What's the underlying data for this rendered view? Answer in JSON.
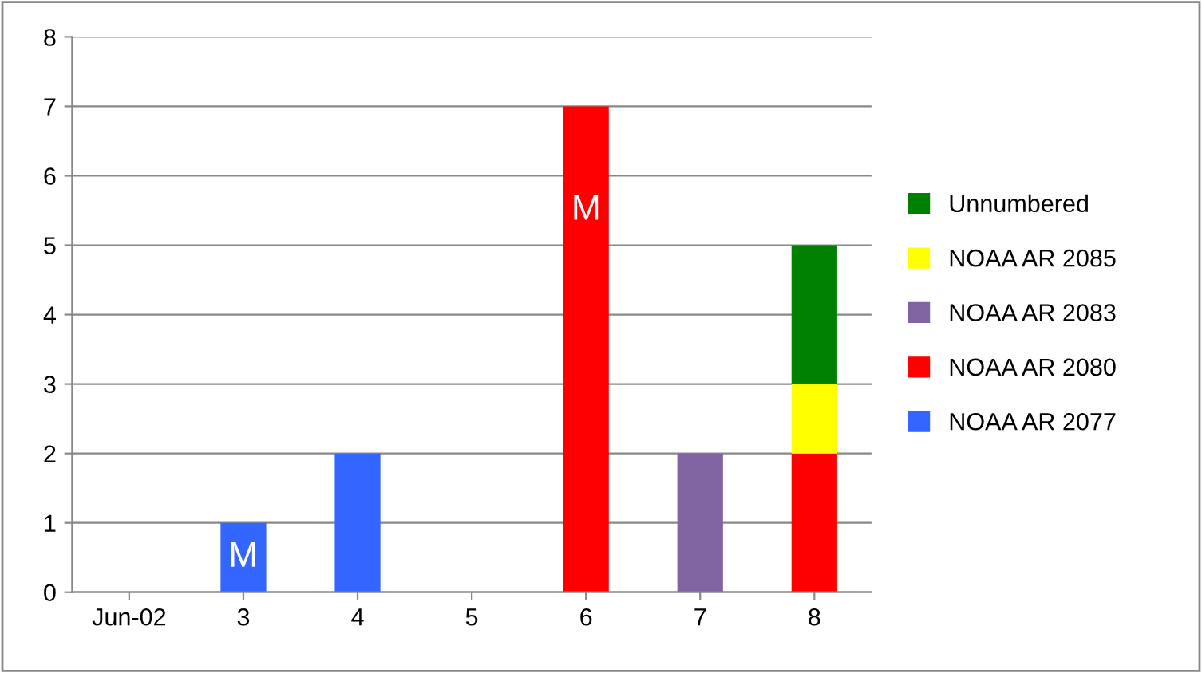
{
  "chart_data": {
    "type": "bar",
    "stacked": true,
    "categories": [
      "Jun-02",
      "3",
      "4",
      "5",
      "6",
      "7",
      "8"
    ],
    "series": [
      {
        "name": "NOAA AR 2077",
        "color": "#3366ff",
        "values": [
          null,
          1,
          2,
          null,
          null,
          null,
          null
        ]
      },
      {
        "name": "NOAA AR 2080",
        "color": "#ff0000",
        "values": [
          null,
          null,
          null,
          null,
          7,
          null,
          2
        ]
      },
      {
        "name": "NOAA AR 2083",
        "color": "#8064a2",
        "values": [
          null,
          null,
          null,
          null,
          null,
          2,
          null
        ]
      },
      {
        "name": "NOAA AR 2085",
        "color": "#ffff00",
        "values": [
          null,
          null,
          null,
          null,
          null,
          null,
          1
        ]
      },
      {
        "name": "Unnumbered",
        "color": "#008000",
        "values": [
          null,
          null,
          null,
          null,
          null,
          null,
          2
        ]
      }
    ],
    "ylim": [
      0,
      8
    ],
    "yticks": [
      0,
      1,
      2,
      3,
      4,
      5,
      6,
      7,
      8
    ],
    "grid": "y",
    "legend": "right",
    "annotations": [
      "M",
      "M"
    ]
  }
}
